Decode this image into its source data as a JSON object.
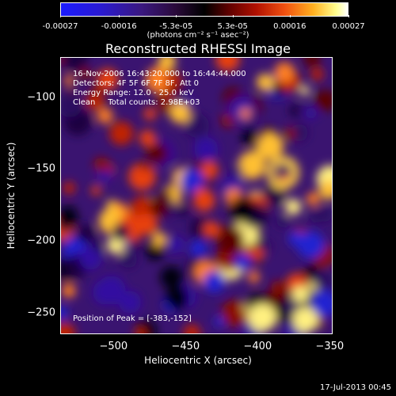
{
  "chart_data": {
    "type": "heatmap",
    "title": "Reconstructed RHESSI Image",
    "xlabel": "Heliocentric X (arcsec)",
    "ylabel": "Heliocentric Y (arcsec)",
    "xlim": [
      -537,
      -348
    ],
    "ylim": [
      -265,
      -72
    ],
    "x_ticks": [
      "-500",
      "-450",
      "-400",
      "-350"
    ],
    "y_ticks": [
      "-100",
      "-150",
      "-200",
      "-250"
    ],
    "colorbar": {
      "min": -0.00027,
      "max": 0.00027,
      "ticks": [
        "-0.00027",
        "-0.00016",
        "-5.3e-05",
        "5.3e-05",
        "0.00016",
        "0.00027"
      ],
      "units": "(photons cm⁻² s⁻¹ asec⁻²)"
    },
    "annotations": {
      "time_range": "16-Nov-2006 16:43:20.000 to 16:44:44.000",
      "detectors": "Detectors: 4F 5F 6F 7F 8F, Att 0",
      "energy": "Energy Range: 12.0 - 25.0 keV",
      "clean": "Clean     Total counts: 2.98E+03",
      "peak": "Position of Peak = [-383,-152]"
    },
    "peak": [
      -383,
      -152
    ],
    "footer_date": "17-Jul-2013 00:45"
  }
}
